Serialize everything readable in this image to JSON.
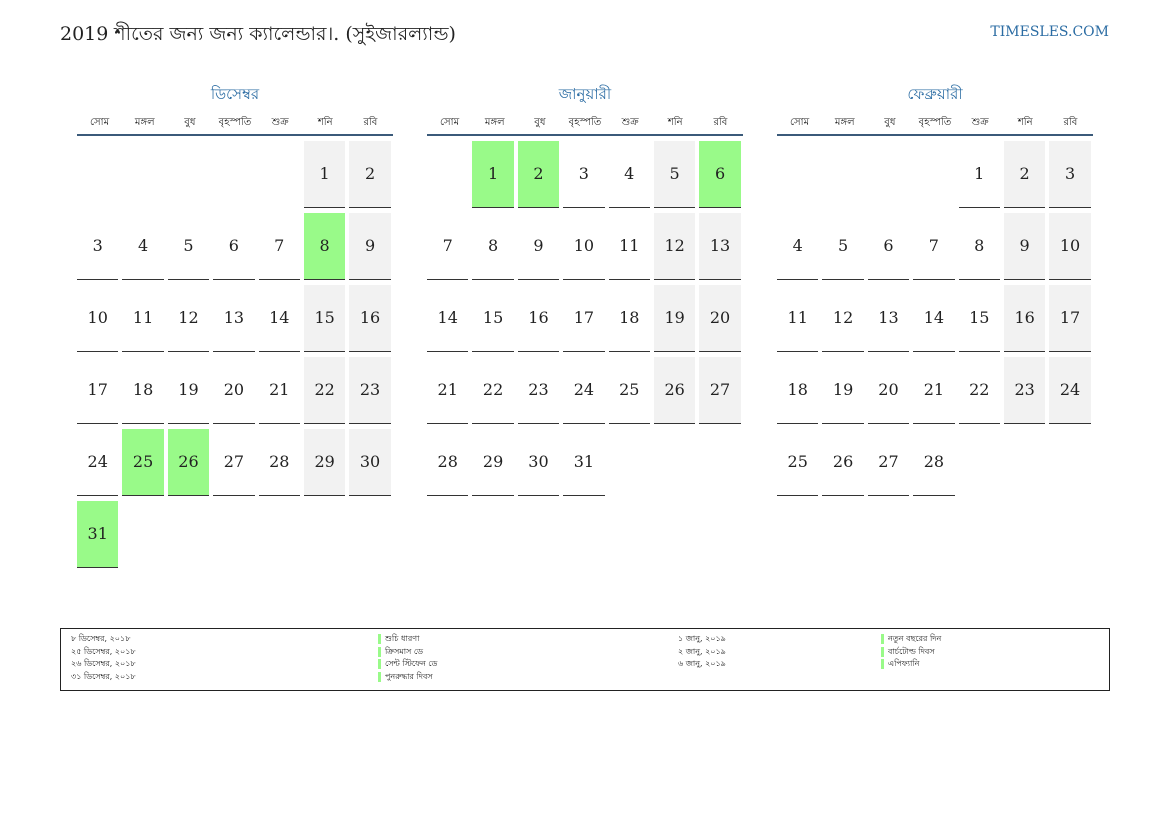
{
  "header": {
    "title": "2019 শীতের জন্য জন্য ক্যালেন্ডার।. (সুইজারল্যান্ড)",
    "site": "TIMESLES.COM"
  },
  "colors": {
    "accent": "#2b6ca3",
    "holiday": "#99fa89",
    "weekend": "#f2f2f2"
  },
  "weekdays": [
    "সোম",
    "মঙ্গল",
    "বুধ",
    "বৃহস্পতি",
    "শুক্র",
    "শনি",
    "রবি"
  ],
  "months": [
    {
      "name": "ডিসেম্বর",
      "offset": 5,
      "days": 31,
      "holidays": [
        8,
        25,
        26,
        31
      ]
    },
    {
      "name": "জানুয়ারী",
      "offset": 1,
      "days": 31,
      "holidays": [
        1,
        2,
        6
      ]
    },
    {
      "name": "ফেব্রুয়ারী",
      "offset": 4,
      "days": 28,
      "holidays": []
    }
  ],
  "legend": {
    "left": [
      {
        "date": "৮ ডিসেম্বর, ২০১৮",
        "name": "শুচি ধারণা"
      },
      {
        "date": "২৫ ডিসেম্বর, ২০১৮",
        "name": "ক্রিসমাস ডে"
      },
      {
        "date": "২৬ ডিসেম্বর, ২০১৮",
        "name": "সেন্ট স্টিফেন ডে"
      },
      {
        "date": "৩১ ডিসেম্বর, ২০১৮",
        "name": "পুনরুদ্ধার দিবস"
      }
    ],
    "right": [
      {
        "date": "১ জানু, ২০১৯",
        "name": "নতুন বছরের দিন"
      },
      {
        "date": "২ জানু, ২০১৯",
        "name": "বার্চটোল্ড দিবস"
      },
      {
        "date": "৬ জানু, ২০১৯",
        "name": "এপিফ্যানি"
      }
    ]
  }
}
